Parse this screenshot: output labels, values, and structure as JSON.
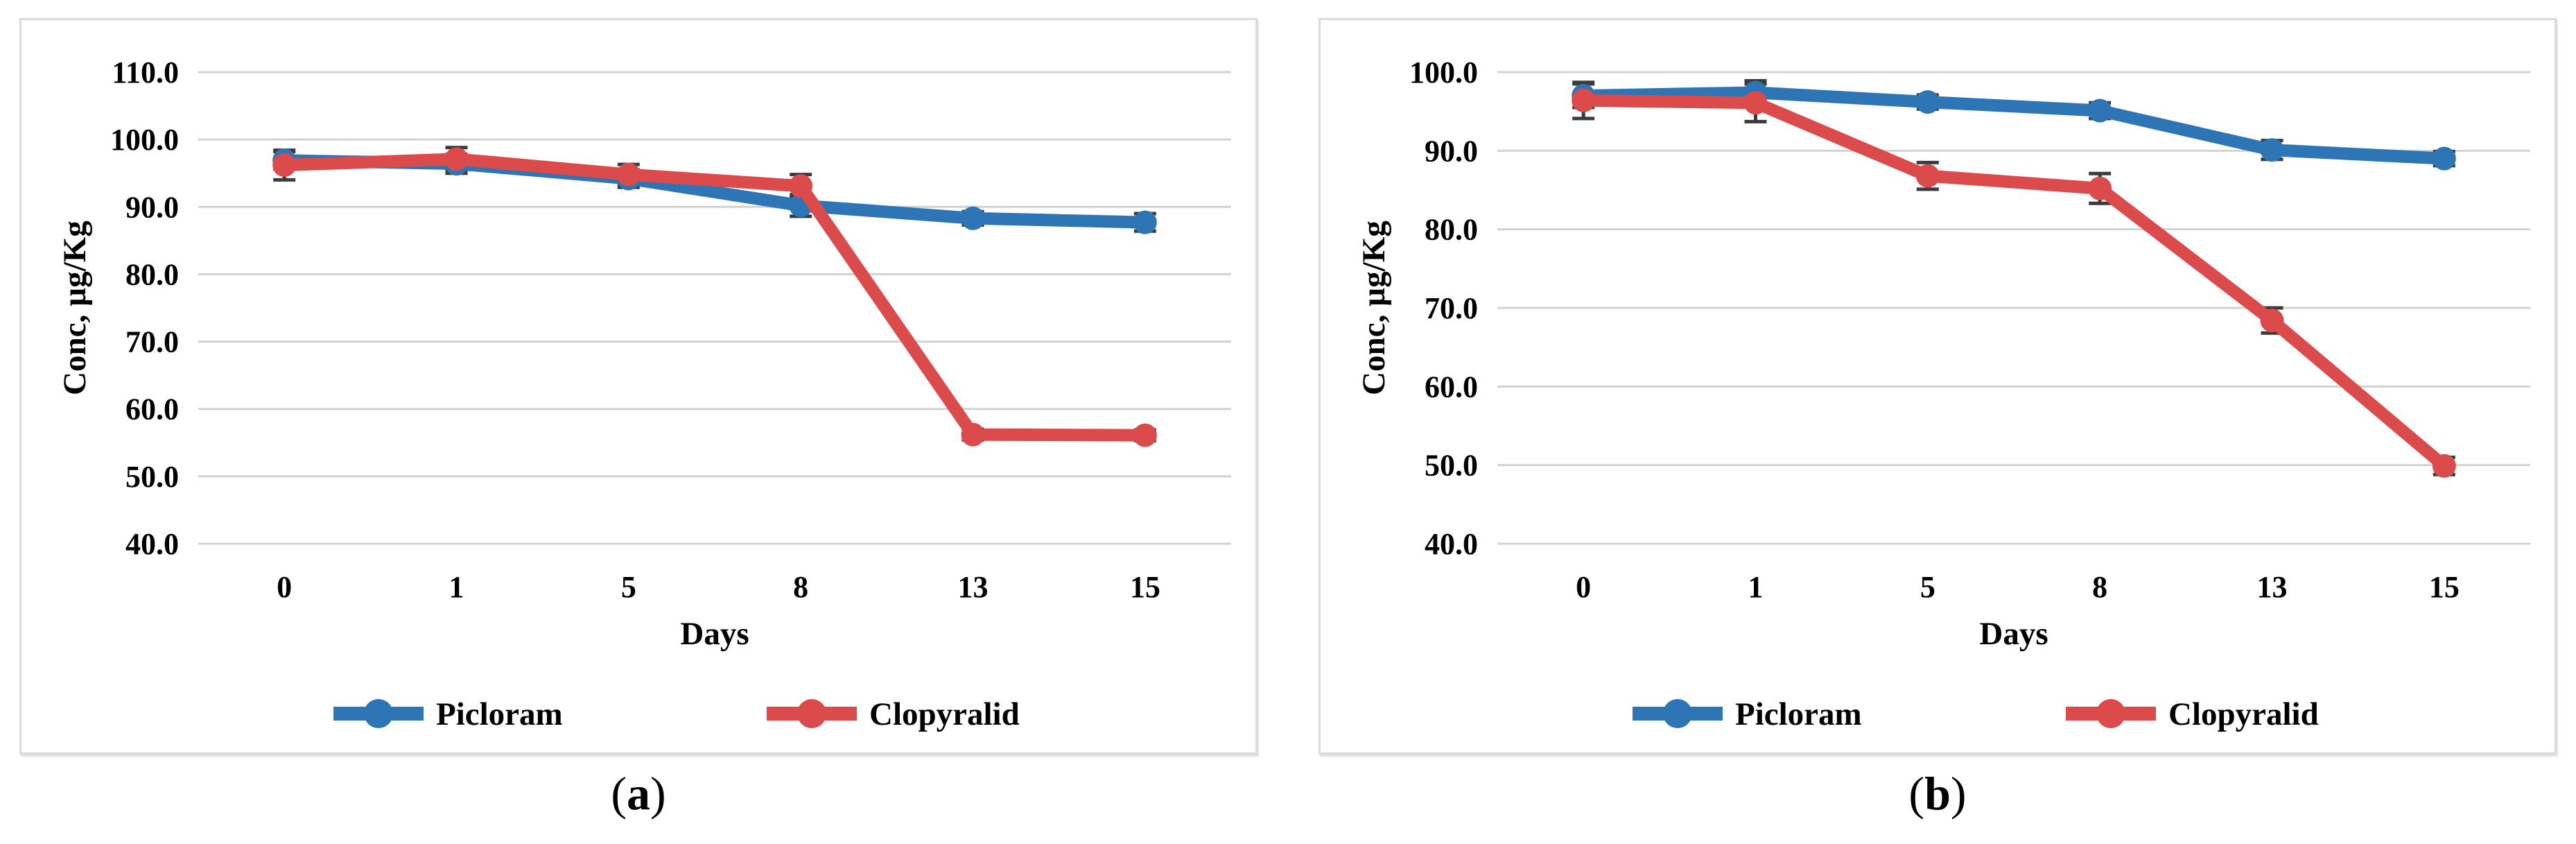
{
  "figure": {
    "panels": [
      {
        "label": {
          "open": "(",
          "letter": "a",
          "close": ")"
        },
        "chart_index": 0
      },
      {
        "label": {
          "open": "(",
          "letter": "b",
          "close": ")"
        },
        "chart_index": 1
      }
    ]
  },
  "chart_data": [
    {
      "type": "line",
      "title": "",
      "xlabel": "Days",
      "ylabel": "Conc, µg/Kg",
      "categories": [
        "0",
        "1",
        "5",
        "8",
        "13",
        "15"
      ],
      "ylim": [
        40,
        110
      ],
      "yticks": [
        "110.0",
        "100.0",
        "90.0",
        "80.0",
        "70.0",
        "60.0",
        "50.0",
        "40.0"
      ],
      "grid": true,
      "legend_position": "bottom",
      "colors": {
        "grid": "#d2d2d2",
        "error_bar": "#3b3b3b",
        "text": "#000000"
      },
      "series": [
        {
          "name": "Picloram",
          "color": "#2E75B6",
          "values": [
            96.9,
            96.4,
            94.2,
            90.2,
            88.3,
            87.7
          ],
          "errors": [
            1.3,
            1.4,
            1.3,
            1.6,
            1.0,
            1.3
          ]
        },
        {
          "name": "Clopyralid",
          "color": "#DB4B4B",
          "values": [
            96.2,
            97.1,
            94.8,
            93.1,
            56.2,
            56.1
          ],
          "errors": [
            2.2,
            1.7,
            1.5,
            1.7,
            0.8,
            0.8
          ]
        }
      ]
    },
    {
      "type": "line",
      "title": "",
      "xlabel": "Days",
      "ylabel": "Conc, µg/Kg",
      "categories": [
        "0",
        "1",
        "5",
        "8",
        "13",
        "15"
      ],
      "ylim": [
        40,
        100
      ],
      "yticks": [
        "100.0",
        "90.0",
        "80.0",
        "70.0",
        "60.0",
        "50.0",
        "40.0"
      ],
      "grid": true,
      "legend_position": "bottom",
      "colors": {
        "grid": "#d2d2d2",
        "error_bar": "#3b3b3b",
        "text": "#000000"
      },
      "series": [
        {
          "name": "Picloram",
          "color": "#2E75B6",
          "values": [
            97.0,
            97.4,
            96.2,
            95.1,
            90.1,
            89.0
          ],
          "errors": [
            1.5,
            1.5,
            0.9,
            1.0,
            1.2,
            0.9
          ]
        },
        {
          "name": "Clopyralid",
          "color": "#DB4B4B",
          "values": [
            96.4,
            96.1,
            86.8,
            85.2,
            68.4,
            49.9
          ],
          "errors": [
            2.3,
            2.4,
            1.7,
            1.9,
            1.6,
            1.1
          ]
        }
      ]
    }
  ]
}
